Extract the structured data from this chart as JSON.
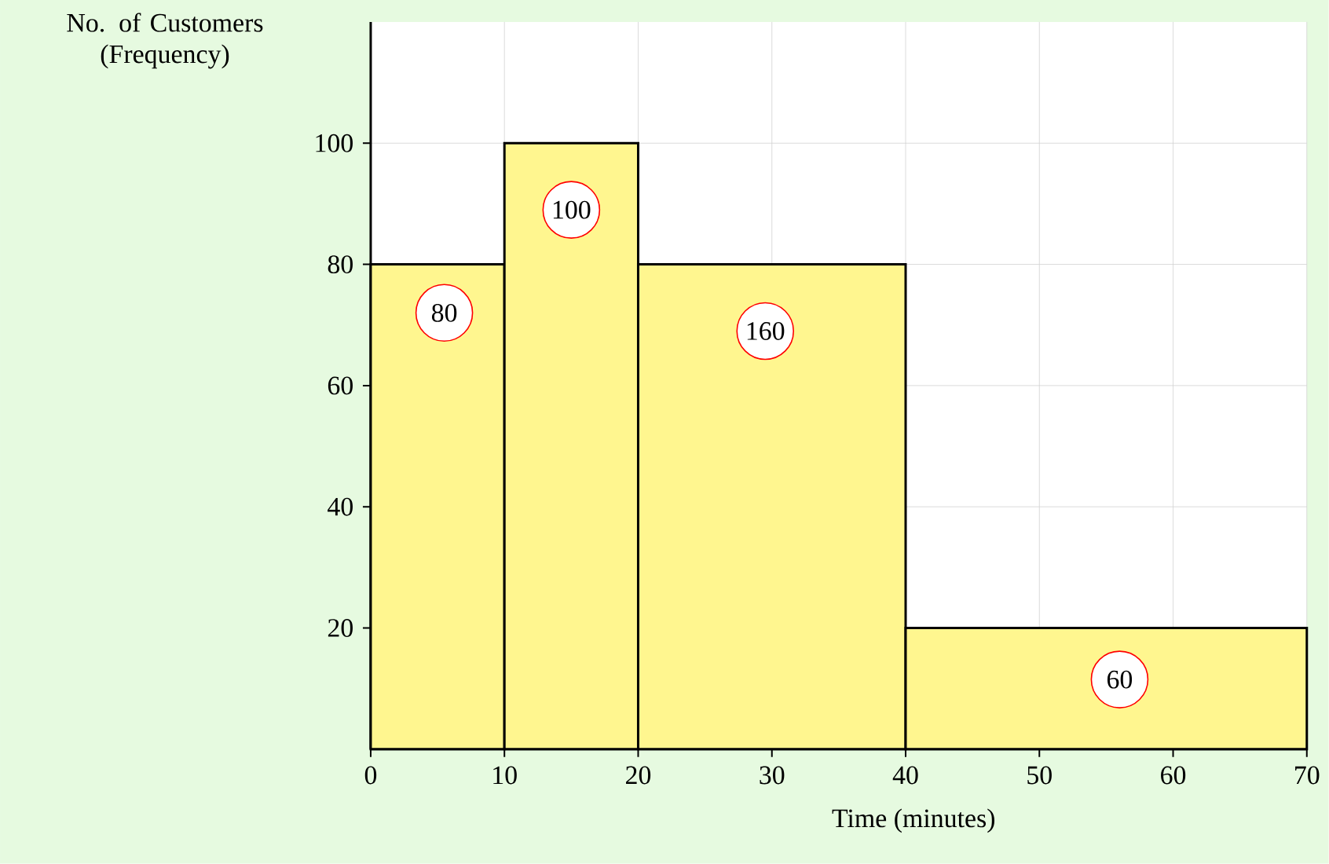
{
  "chart_data": {
    "type": "histogram",
    "xlabel": "Time (minutes)",
    "ylabel": "No. of Customers (Frequency)",
    "bins": [
      0,
      10,
      20,
      40,
      70
    ],
    "values": [
      80,
      100,
      80,
      20
    ],
    "annotations": [
      {
        "text": "80",
        "x": 5.5,
        "y": 72
      },
      {
        "text": "100",
        "x": 15,
        "y": 89
      },
      {
        "text": "160",
        "x": 29.5,
        "y": 69
      },
      {
        "text": "60",
        "x": 56,
        "y": 11.5
      }
    ],
    "color": "#fff68f",
    "xlim": [
      0,
      70
    ],
    "xticks": [
      0,
      10,
      20,
      30,
      40,
      50,
      60,
      70
    ],
    "ylim": [
      0,
      120
    ],
    "yticks": [
      20,
      40,
      60,
      80,
      100
    ],
    "grid": true
  }
}
